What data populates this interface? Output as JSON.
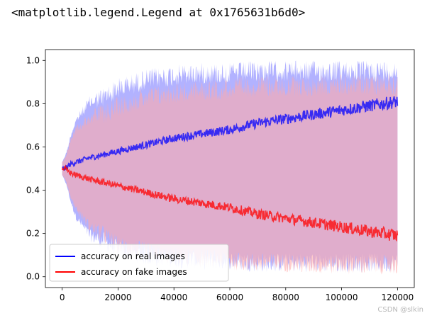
{
  "output_text": "<matplotlib.legend.Legend at 0x1765631b6d0>",
  "watermark": "CSDN @slkin",
  "chart_data": {
    "type": "line",
    "title": "",
    "xlabel": "",
    "ylabel": "",
    "xlim": [
      -6000,
      126000
    ],
    "ylim": [
      -0.05,
      1.05
    ],
    "xticks": [
      0,
      20000,
      40000,
      60000,
      80000,
      100000,
      120000
    ],
    "yticks": [
      0.0,
      0.2,
      0.4,
      0.6,
      0.8,
      1.0
    ],
    "grid": false,
    "legend_position": "lower-left",
    "series": [
      {
        "name": "accuracy on real images",
        "color": "#0000ff",
        "band_color": "#aaaaff",
        "x": [
          0,
          1000,
          2000,
          3000,
          5000,
          10000,
          20000,
          30000,
          40000,
          50000,
          60000,
          70000,
          80000,
          90000,
          100000,
          110000,
          120000
        ],
        "mean": [
          0.5,
          0.5,
          0.51,
          0.52,
          0.53,
          0.55,
          0.58,
          0.61,
          0.64,
          0.66,
          0.68,
          0.71,
          0.73,
          0.75,
          0.77,
          0.79,
          0.81
        ],
        "upper": [
          0.53,
          0.56,
          0.6,
          0.66,
          0.74,
          0.84,
          0.92,
          0.96,
          0.98,
          0.99,
          0.99,
          1.0,
          1.0,
          1.0,
          1.0,
          1.0,
          1.0
        ],
        "lower": [
          0.47,
          0.44,
          0.4,
          0.34,
          0.26,
          0.16,
          0.08,
          0.05,
          0.04,
          0.03,
          0.03,
          0.02,
          0.02,
          0.02,
          0.02,
          0.02,
          0.02
        ]
      },
      {
        "name": "accuracy on fake images",
        "color": "#ff0000",
        "band_color": "#ffaaaa",
        "x": [
          0,
          1000,
          2000,
          3000,
          5000,
          10000,
          20000,
          30000,
          40000,
          50000,
          60000,
          70000,
          80000,
          90000,
          100000,
          110000,
          120000
        ],
        "mean": [
          0.5,
          0.5,
          0.49,
          0.48,
          0.47,
          0.45,
          0.42,
          0.39,
          0.36,
          0.34,
          0.32,
          0.29,
          0.27,
          0.25,
          0.23,
          0.21,
          0.19
        ],
        "upper": [
          0.53,
          0.55,
          0.59,
          0.64,
          0.7,
          0.77,
          0.84,
          0.88,
          0.9,
          0.91,
          0.92,
          0.93,
          0.93,
          0.93,
          0.94,
          0.94,
          0.94
        ],
        "lower": [
          0.47,
          0.45,
          0.41,
          0.36,
          0.3,
          0.2,
          0.1,
          0.07,
          0.05,
          0.04,
          0.03,
          0.02,
          0.02,
          0.01,
          0.01,
          0.01,
          0.01
        ]
      }
    ]
  }
}
